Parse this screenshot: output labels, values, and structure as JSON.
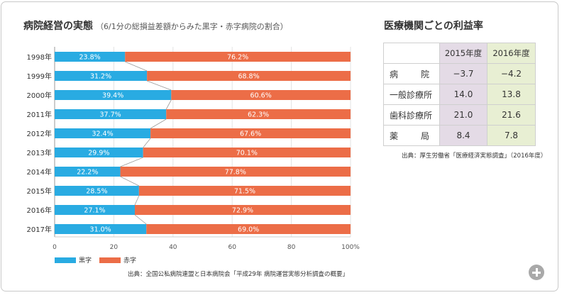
{
  "chart_title": "病院経営の実態",
  "chart_subtitle": "（6/1分の総損益差額からみた黒字・赤字病院の割合）",
  "chart_data": {
    "type": "bar",
    "orientation": "horizontal",
    "stacked": true,
    "categories": [
      "1998年",
      "1999年",
      "2000年",
      "2011年",
      "2012年",
      "2013年",
      "2014年",
      "2015年",
      "2016年",
      "2017年"
    ],
    "series": [
      {
        "name": "黒字",
        "color": "#29abe2",
        "values": [
          23.8,
          31.2,
          39.4,
          37.7,
          32.4,
          29.9,
          22.2,
          28.5,
          27.1,
          31.0
        ]
      },
      {
        "name": "赤字",
        "color": "#ec6d47",
        "values": [
          76.2,
          68.8,
          60.6,
          62.3,
          67.6,
          70.1,
          77.8,
          71.5,
          72.9,
          69.0
        ]
      }
    ],
    "value_labels": [
      [
        "23.8%",
        "31.2%",
        "39.4%",
        "37.7%",
        "32.4%",
        "29.9%",
        "22.2%",
        "28.5%",
        "27.1%",
        "31.0%"
      ],
      [
        "76.2%",
        "68.8%",
        "60.6%",
        "62.3%",
        "67.6%",
        "70.1%",
        "77.8%",
        "71.5%",
        "72.9%",
        "69.0%"
      ]
    ],
    "x_ticks": [
      0,
      20,
      40,
      60,
      80,
      100
    ],
    "x_tick_labels": [
      "0",
      "20",
      "40",
      "60",
      "80",
      "100%"
    ],
    "xlim": [
      0,
      100
    ],
    "connector_lines": true,
    "legend_position": "bottom-left"
  },
  "legend": {
    "black": "黒字",
    "red": "赤字"
  },
  "chart_source": "出典：全国公私病院連盟と日本病院会「平成29年 病院運営実態分析調査の概要」",
  "table_title": "医療機関ごとの利益率",
  "table": {
    "headers": [
      "2015年度",
      "2016年度"
    ],
    "rows": [
      {
        "label_chars": [
          "病",
          "院"
        ],
        "v2015": "−3.7",
        "v2016": "−4.2"
      },
      {
        "label": "一般診療所",
        "v2015": "14.0",
        "v2016": "13.8"
      },
      {
        "label": "歯科診療所",
        "v2015": "21.0",
        "v2016": "21.6"
      },
      {
        "label_chars": [
          "薬",
          "局"
        ],
        "v2015": "8.4",
        "v2016": "7.8"
      }
    ]
  },
  "table_source": "出典：厚生労働省「医療経済実態調査」（2016年度）",
  "colors": {
    "black_bar": "#29abe2",
    "red_bar": "#ec6d47",
    "col2015_bg": "#e4dbe6",
    "col2016_bg": "#e8efd3",
    "plus_button": "#a9a9a9"
  },
  "plus_icon": "plus-icon"
}
